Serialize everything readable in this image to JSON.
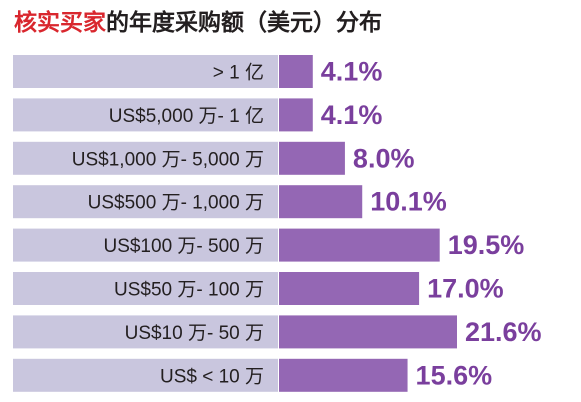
{
  "title": {
    "highlight": "核实买家",
    "rest": "的年度采购额（美元）分布"
  },
  "colors": {
    "title_highlight": "#d9272e",
    "label_band": "#c9c6de",
    "bar": "#9467b4",
    "value_text": "#7a3f9d"
  },
  "chart_data": {
    "type": "bar",
    "orientation": "horizontal",
    "title": "核实买家的年度采购额（美元）分布",
    "categories": [
      "> 1 亿",
      "US$5,000 万- 1 亿",
      "US$1,000 万- 5,000 万",
      "US$500 万- 1,000 万",
      "US$100 万- 500 万",
      "US$50 万- 100 万",
      "US$10 万- 50 万",
      "US$ < 10 万"
    ],
    "values": [
      4.1,
      4.1,
      8.0,
      10.1,
      19.5,
      17.0,
      21.6,
      15.6
    ],
    "value_labels": [
      "4.1%",
      "4.1%",
      "8.0%",
      "10.1%",
      "19.5%",
      "17.0%",
      "21.6%",
      "15.6%"
    ],
    "unit": "%",
    "xlim": [
      0,
      21.6
    ],
    "grid": false,
    "legend": "none"
  }
}
